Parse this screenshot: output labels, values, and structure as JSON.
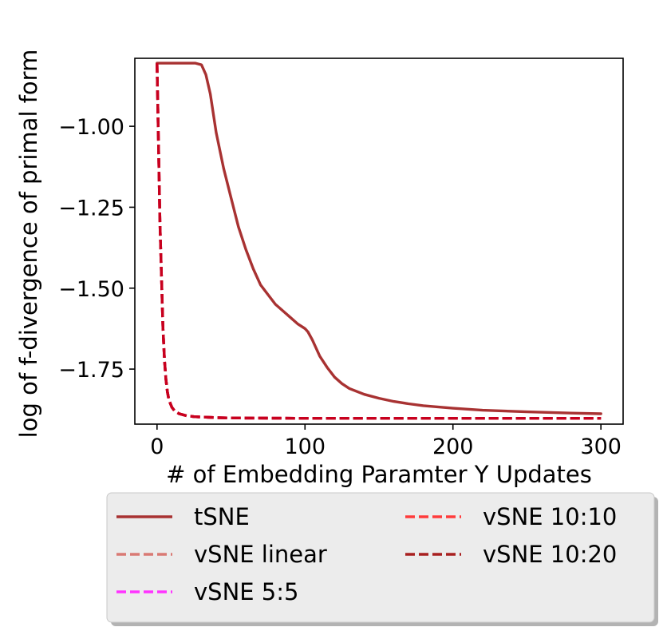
{
  "chart_data": {
    "type": "line",
    "title": "",
    "xlabel": "# of Embedding Paramter Y Updates",
    "ylabel": "log of f-divergence of primal form",
    "xlim": [
      -15,
      315
    ],
    "ylim": [
      -1.92,
      -0.79
    ],
    "xticks": [
      0,
      100,
      200,
      300
    ],
    "xtick_labels": [
      "0",
      "100",
      "200",
      "300"
    ],
    "yticks": [
      -1.0,
      -1.25,
      -1.5,
      -1.75
    ],
    "ytick_labels": [
      "−1.00",
      "−1.25",
      "−1.50",
      "−1.75"
    ],
    "grid": false,
    "legend_position": "below",
    "series": [
      {
        "name": "tSNE",
        "color": "#a83232",
        "style": "solid",
        "x": [
          0,
          10,
          20,
          26,
          30,
          33,
          36,
          40,
          45,
          50,
          55,
          60,
          65,
          70,
          75,
          80,
          85,
          90,
          95,
          100,
          102,
          105,
          110,
          115,
          120,
          125,
          130,
          140,
          150,
          160,
          170,
          180,
          200,
          220,
          250,
          280,
          300
        ],
        "y": [
          -0.805,
          -0.805,
          -0.805,
          -0.805,
          -0.81,
          -0.84,
          -0.9,
          -1.02,
          -1.13,
          -1.22,
          -1.31,
          -1.38,
          -1.44,
          -1.49,
          -1.52,
          -1.55,
          -1.57,
          -1.59,
          -1.61,
          -1.625,
          -1.635,
          -1.66,
          -1.71,
          -1.745,
          -1.775,
          -1.795,
          -1.81,
          -1.828,
          -1.84,
          -1.85,
          -1.857,
          -1.863,
          -1.871,
          -1.877,
          -1.882,
          -1.886,
          -1.888
        ]
      },
      {
        "name": "vSNE linear",
        "color": "#d97a74",
        "style": "dashed",
        "x": [
          0,
          2,
          4,
          5,
          6,
          7,
          8,
          10,
          12,
          15,
          20,
          25,
          30,
          40,
          50,
          100,
          150,
          200,
          250,
          300
        ],
        "y": [
          -0.805,
          -1.3,
          -1.62,
          -1.72,
          -1.78,
          -1.82,
          -1.845,
          -1.868,
          -1.88,
          -1.888,
          -1.894,
          -1.897,
          -1.898,
          -1.9,
          -1.901,
          -1.902,
          -1.902,
          -1.902,
          -1.902,
          -1.902
        ]
      },
      {
        "name": "vSNE 5:5",
        "color": "#ff33ff",
        "style": "dashed",
        "x": [
          0,
          2,
          4,
          5,
          6,
          7,
          8,
          10,
          12,
          15,
          20,
          25,
          30,
          40,
          50,
          100,
          150,
          200,
          250,
          300
        ],
        "y": [
          -0.805,
          -1.3,
          -1.62,
          -1.72,
          -1.78,
          -1.82,
          -1.845,
          -1.868,
          -1.88,
          -1.888,
          -1.894,
          -1.897,
          -1.898,
          -1.9,
          -1.901,
          -1.902,
          -1.902,
          -1.902,
          -1.902,
          -1.902
        ]
      },
      {
        "name": "vSNE 10:10",
        "color": "#ff3b3b",
        "style": "dashed",
        "x": [
          0,
          2,
          4,
          5,
          6,
          7,
          8,
          10,
          12,
          15,
          20,
          25,
          30,
          40,
          50,
          100,
          150,
          200,
          250,
          300
        ],
        "y": [
          -0.805,
          -1.3,
          -1.62,
          -1.72,
          -1.78,
          -1.82,
          -1.845,
          -1.868,
          -1.88,
          -1.888,
          -1.894,
          -1.897,
          -1.898,
          -1.9,
          -1.901,
          -1.902,
          -1.902,
          -1.902,
          -1.902,
          -1.902
        ]
      },
      {
        "name": "vSNE 10:20",
        "color": "#a82020",
        "style": "dashed",
        "x": [
          0,
          2,
          4,
          5,
          6,
          7,
          8,
          10,
          12,
          15,
          20,
          25,
          30,
          40,
          50,
          100,
          150,
          200,
          250,
          300
        ],
        "y": [
          -0.805,
          -1.3,
          -1.62,
          -1.72,
          -1.78,
          -1.82,
          -1.845,
          -1.868,
          -1.88,
          -1.888,
          -1.894,
          -1.897,
          -1.898,
          -1.9,
          -1.901,
          -1.902,
          -1.902,
          -1.902,
          -1.902,
          -1.902
        ]
      },
      {
        "name": "",
        "color": "#c8001e",
        "style": "dashed",
        "x": [
          0,
          2,
          4,
          5,
          6,
          7,
          8,
          10,
          12,
          15,
          20,
          25,
          30,
          40,
          50,
          100,
          150,
          200,
          250,
          300
        ],
        "y": [
          -0.805,
          -1.3,
          -1.62,
          -1.72,
          -1.78,
          -1.82,
          -1.845,
          -1.868,
          -1.88,
          -1.888,
          -1.894,
          -1.897,
          -1.898,
          -1.9,
          -1.901,
          -1.902,
          -1.902,
          -1.902,
          -1.902,
          -1.902
        ]
      }
    ],
    "legend": {
      "columns": [
        [
          {
            "label": "tSNE",
            "color": "#a83232",
            "style": "solid"
          },
          {
            "label": "vSNE linear",
            "color": "#d97a74",
            "style": "dashed"
          },
          {
            "label": "vSNE 5:5",
            "color": "#ff33ff",
            "style": "dashed"
          }
        ],
        [
          {
            "label": "vSNE 10:10",
            "color": "#ff3b3b",
            "style": "dashed"
          },
          {
            "label": "vSNE 10:20",
            "color": "#a82020",
            "style": "dashed"
          }
        ]
      ]
    }
  }
}
